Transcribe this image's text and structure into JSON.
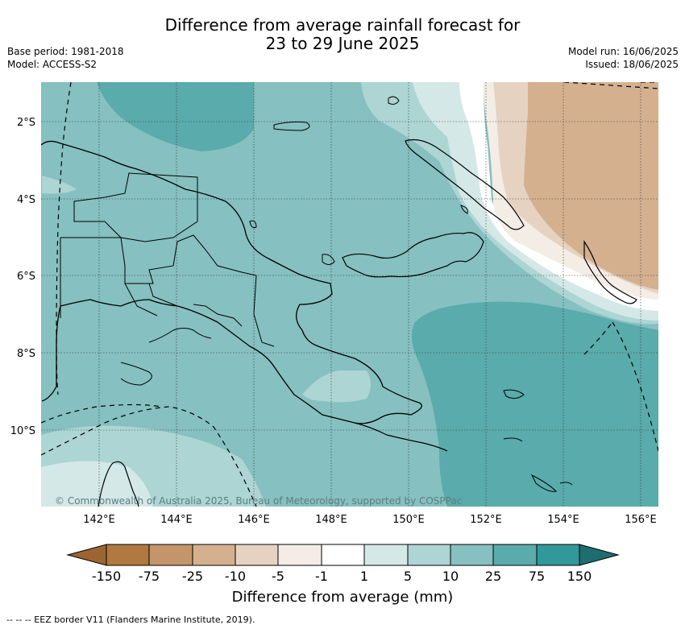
{
  "title_line1": "Difference from average rainfall forecast for",
  "title_line2": "23 to 29 June 2025",
  "meta_left": {
    "base_period": "Base period: 1981-2018",
    "model": "Model: ACCESS-S2"
  },
  "meta_right": {
    "model_run": "Model run: 16/06/2025",
    "issued": "Issued: 18/06/2025"
  },
  "lat_labels": [
    "2°S",
    "4°S",
    "6°S",
    "8°S",
    "10°S"
  ],
  "lon_labels": [
    "142°E",
    "144°E",
    "146°E",
    "148°E",
    "150°E",
    "152°E",
    "154°E",
    "156°E"
  ],
  "copyright": "© Commonwealth of Australia 2025, Bureau of Meteorology, supported by COSPPac",
  "colorbar": {
    "title": "Difference from average (mm)",
    "tick_labels": [
      "-150",
      "-75",
      "-25",
      "-10",
      "-5",
      "-1",
      "1",
      "5",
      "10",
      "25",
      "75",
      "150"
    ],
    "colors": [
      "#9c6430",
      "#b07940",
      "#c4956a",
      "#d4b08f",
      "#e6d2c1",
      "#f3ede6",
      "#ffffff",
      "#d4e8e7",
      "#acd5d4",
      "#86c0c0",
      "#5aabab",
      "#32999a",
      "#1e6e70"
    ]
  },
  "eez_note": "--  --  -- EEZ border V11 (Flanders Marine Institute, 2019).",
  "colors": {
    "teal_dark": "#5aabab",
    "teal_mid": "#86c0c0",
    "teal_light": "#acd5d4",
    "teal_pale": "#d4e8e7",
    "brown_light": "#e6d2c1",
    "brown_mid": "#d4b08f",
    "brown_pale": "#f3ede6"
  }
}
